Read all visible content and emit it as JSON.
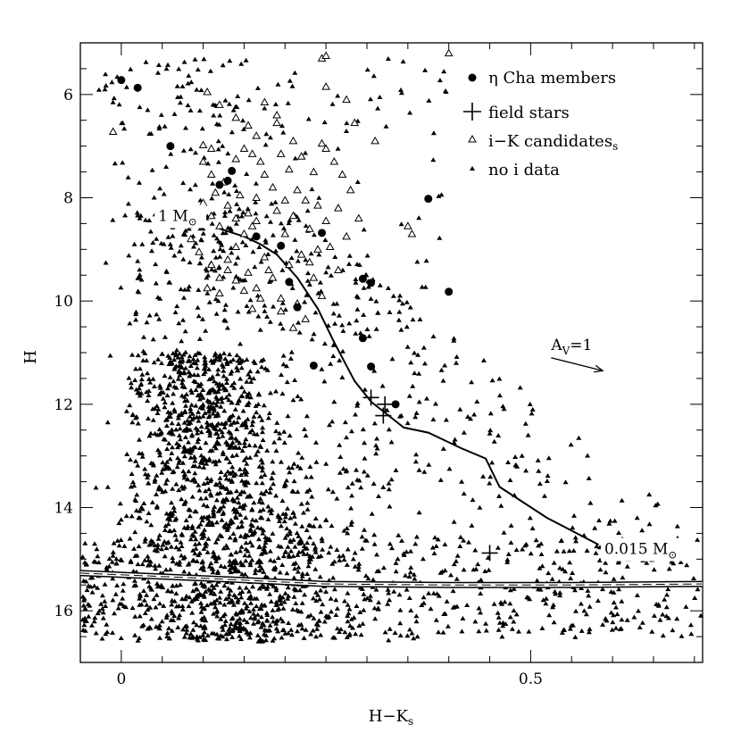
{
  "chart_data": {
    "type": "scatter",
    "title": "",
    "xlabel": "H−K",
    "xlabel_subscript": "s",
    "ylabel": "H",
    "xlim": [
      -0.05,
      0.71
    ],
    "ylim": [
      17.0,
      5.0
    ],
    "y_inverted": true,
    "x_ticks": [
      0,
      0.5
    ],
    "x_tick_labels": [
      "0",
      "0.5"
    ],
    "y_ticks": [
      6,
      8,
      10,
      12,
      14,
      16
    ],
    "y_tick_labels": [
      "6",
      "8",
      "10",
      "12",
      "14",
      "16"
    ],
    "grid": false,
    "legend_position": "top-right",
    "legend": [
      {
        "marker": "filled-circle",
        "label": "η Cha members"
      },
      {
        "marker": "plus",
        "label": "field stars"
      },
      {
        "marker": "open-triangle",
        "label": "i−K candidates",
        "label_subscript": "s"
      },
      {
        "marker": "small-filled-triangle",
        "label": "no i data"
      }
    ],
    "series": [
      {
        "name": "η Cha members",
        "marker": "filled-circle",
        "points": [
          [
            0.0,
            5.72
          ],
          [
            0.02,
            5.87
          ],
          [
            0.06,
            7.0
          ],
          [
            0.12,
            7.75
          ],
          [
            0.13,
            7.67
          ],
          [
            0.135,
            7.48
          ],
          [
            0.165,
            8.75
          ],
          [
            0.195,
            8.93
          ],
          [
            0.205,
            9.63
          ],
          [
            0.215,
            10.12
          ],
          [
            0.235,
            11.25
          ],
          [
            0.245,
            8.68
          ],
          [
            0.295,
            9.57
          ],
          [
            0.295,
            10.72
          ],
          [
            0.305,
            9.65
          ],
          [
            0.305,
            11.27
          ],
          [
            0.335,
            12.0
          ],
          [
            0.375,
            8.02
          ],
          [
            0.4,
            9.82
          ]
        ]
      },
      {
        "name": "field stars",
        "marker": "plus",
        "points": [
          [
            0.305,
            11.87
          ],
          [
            0.322,
            12.0
          ],
          [
            0.32,
            12.22
          ],
          [
            0.45,
            14.88
          ]
        ]
      },
      {
        "name": "i−K candidates",
        "marker": "open-triangle",
        "points": [
          [
            -0.01,
            6.72
          ],
          [
            0.1,
            6.98
          ],
          [
            0.11,
            7.05
          ],
          [
            0.1,
            7.3
          ],
          [
            0.11,
            7.55
          ],
          [
            0.105,
            5.95
          ],
          [
            0.12,
            6.2
          ],
          [
            0.14,
            6.45
          ],
          [
            0.155,
            6.6
          ],
          [
            0.165,
            6.8
          ],
          [
            0.175,
            6.15
          ],
          [
            0.19,
            6.55
          ],
          [
            0.195,
            7.15
          ],
          [
            0.205,
            7.45
          ],
          [
            0.215,
            7.85
          ],
          [
            0.225,
            8.05
          ],
          [
            0.235,
            7.5
          ],
          [
            0.245,
            5.3
          ],
          [
            0.25,
            5.85
          ],
          [
            0.245,
            6.95
          ],
          [
            0.26,
            7.3
          ],
          [
            0.275,
            6.1
          ],
          [
            0.285,
            6.55
          ],
          [
            0.29,
            8.4
          ],
          [
            0.31,
            6.9
          ],
          [
            0.35,
            8.55
          ],
          [
            0.355,
            8.7
          ],
          [
            0.25,
            8.45
          ],
          [
            0.24,
            8.15
          ],
          [
            0.23,
            8.6
          ],
          [
            0.21,
            8.35
          ],
          [
            0.2,
            8.05
          ],
          [
            0.185,
            7.8
          ],
          [
            0.175,
            7.55
          ],
          [
            0.165,
            8.0
          ],
          [
            0.155,
            8.3
          ],
          [
            0.145,
            7.95
          ],
          [
            0.13,
            8.15
          ],
          [
            0.125,
            7.7
          ],
          [
            0.115,
            7.9
          ],
          [
            0.1,
            8.1
          ],
          [
            0.09,
            8.45
          ],
          [
            0.085,
            8.8
          ],
          [
            0.095,
            9.05
          ],
          [
            0.11,
            9.3
          ],
          [
            0.12,
            9.55
          ],
          [
            0.13,
            9.2
          ],
          [
            0.14,
            8.95
          ],
          [
            0.155,
            9.45
          ],
          [
            0.165,
            9.75
          ],
          [
            0.175,
            9.15
          ],
          [
            0.185,
            9.55
          ],
          [
            0.195,
            9.95
          ],
          [
            0.205,
            9.3
          ],
          [
            0.215,
            10.05
          ],
          [
            0.225,
            10.35
          ],
          [
            0.21,
            10.52
          ],
          [
            0.235,
            9.55
          ],
          [
            0.245,
            9.9
          ],
          [
            0.195,
            10.2
          ],
          [
            0.18,
            9.4
          ],
          [
            0.17,
            9.95
          ],
          [
            0.16,
            10.15
          ],
          [
            0.15,
            9.8
          ],
          [
            0.14,
            9.6
          ],
          [
            0.13,
            9.4
          ],
          [
            0.12,
            9.85
          ],
          [
            0.105,
            9.75
          ],
          [
            0.2,
            8.7
          ],
          [
            0.19,
            8.25
          ],
          [
            0.16,
            8.55
          ],
          [
            0.15,
            8.7
          ],
          [
            0.14,
            8.4
          ],
          [
            0.22,
            9.1
          ],
          [
            0.23,
            9.25
          ],
          [
            0.24,
            9.0
          ],
          [
            0.255,
            8.95
          ],
          [
            0.265,
            8.2
          ],
          [
            0.275,
            8.75
          ],
          [
            0.22,
            7.2
          ],
          [
            0.21,
            6.9
          ],
          [
            0.19,
            6.4
          ],
          [
            0.17,
            7.3
          ],
          [
            0.16,
            7.15
          ],
          [
            0.15,
            7.05
          ],
          [
            0.14,
            7.25
          ],
          [
            0.25,
            7.05
          ],
          [
            0.27,
            7.55
          ],
          [
            0.28,
            7.85
          ],
          [
            0.265,
            9.4
          ],
          [
            0.12,
            8.55
          ],
          [
            0.11,
            8.35
          ],
          [
            0.165,
            8.45
          ],
          [
            0.25,
            5.25
          ],
          [
            0.4,
            5.2
          ]
        ]
      },
      {
        "name": "no i data",
        "marker": "small-filled-triangle",
        "distribution": "dense cloud of several thousand faint field stars; densest near H−K≈0.10, H≈12–15; lower envelope near H≈16.3–16.5; upper envelope rising toward H≈5.3 at H−K≈0.15–0.45"
      }
    ],
    "lines": [
      {
        "type": "isochrone",
        "style": "solid",
        "points": [
          [
            0.12,
            8.6
          ],
          [
            0.15,
            8.75
          ],
          [
            0.17,
            8.9
          ],
          [
            0.19,
            9.1
          ],
          [
            0.215,
            9.55
          ],
          [
            0.24,
            10.15
          ],
          [
            0.26,
            10.8
          ],
          [
            0.285,
            11.55
          ],
          [
            0.305,
            11.95
          ],
          [
            0.325,
            12.2
          ],
          [
            0.345,
            12.45
          ],
          [
            0.375,
            12.55
          ],
          [
            0.415,
            12.85
          ],
          [
            0.445,
            13.05
          ],
          [
            0.462,
            13.6
          ],
          [
            0.52,
            14.2
          ],
          [
            0.583,
            14.72
          ]
        ]
      },
      {
        "type": "completeness-limit",
        "style": "double-solid-with-dash",
        "points": [
          [
            -0.05,
            15.27
          ],
          [
            0.1,
            15.37
          ],
          [
            0.25,
            15.48
          ],
          [
            0.4,
            15.5
          ],
          [
            0.55,
            15.5
          ],
          [
            0.71,
            15.48
          ]
        ]
      }
    ],
    "annotations": [
      {
        "text": "1 M",
        "subscript": "⊙",
        "x": 0.045,
        "y": 8.45
      },
      {
        "text": "0.015 M",
        "subscript": "⊙",
        "x": 0.59,
        "y": 14.9
      },
      {
        "text": "A",
        "subscript": "V",
        "suffix": "=1",
        "x": 0.525,
        "y": 10.95
      }
    ],
    "reddening_vector": {
      "label": "A_V=1",
      "from": [
        0.525,
        11.1
      ],
      "to": [
        0.588,
        11.35
      ]
    }
  }
}
